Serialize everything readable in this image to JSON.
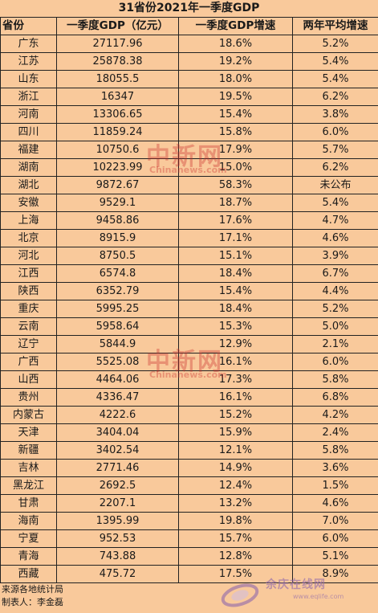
{
  "title": "31省份2021年一季度GDP",
  "headers": {
    "province": "省份",
    "gdp": "一季度GDP（亿元）",
    "growth": "一季度GDP增速",
    "avg": "两年平均增速"
  },
  "rows": [
    {
      "province": "广东",
      "gdp": "27117.96",
      "growth": "18.6%",
      "avg": "5.2%"
    },
    {
      "province": "江苏",
      "gdp": "25878.38",
      "growth": "19.2%",
      "avg": "5.4%"
    },
    {
      "province": "山东",
      "gdp": "18055.5",
      "growth": "18.0%",
      "avg": "5.4%"
    },
    {
      "province": "浙江",
      "gdp": "16347",
      "growth": "19.5%",
      "avg": "6.2%"
    },
    {
      "province": "河南",
      "gdp": "13306.65",
      "growth": "15.4%",
      "avg": "3.8%"
    },
    {
      "province": "四川",
      "gdp": "11859.24",
      "growth": "15.8%",
      "avg": "6.0%"
    },
    {
      "province": "福建",
      "gdp": "10750.6",
      "growth": "17.9%",
      "avg": "5.7%"
    },
    {
      "province": "湖南",
      "gdp": "10223.99",
      "growth": "15.0%",
      "avg": "6.2%"
    },
    {
      "province": "湖北",
      "gdp": "9872.67",
      "growth": "58.3%",
      "avg": "未公布"
    },
    {
      "province": "安徽",
      "gdp": "9529.1",
      "growth": "18.7%",
      "avg": "5.4%"
    },
    {
      "province": "上海",
      "gdp": "9458.86",
      "growth": "17.6%",
      "avg": "4.7%"
    },
    {
      "province": "北京",
      "gdp": "8915.9",
      "growth": "17.1%",
      "avg": "4.6%"
    },
    {
      "province": "河北",
      "gdp": "8750.5",
      "growth": "15.1%",
      "avg": "3.9%"
    },
    {
      "province": "江西",
      "gdp": "6574.8",
      "growth": "18.4%",
      "avg": "6.7%"
    },
    {
      "province": "陕西",
      "gdp": "6352.79",
      "growth": "15.4%",
      "avg": "4.4%"
    },
    {
      "province": "重庆",
      "gdp": "5995.25",
      "growth": "18.4%",
      "avg": "5.2%"
    },
    {
      "province": "云南",
      "gdp": "5958.64",
      "growth": "15.3%",
      "avg": "5.0%"
    },
    {
      "province": "辽宁",
      "gdp": "5844.9",
      "growth": "12.9%",
      "avg": "2.1%"
    },
    {
      "province": "广西",
      "gdp": "5525.08",
      "growth": "16.1%",
      "avg": "6.0%"
    },
    {
      "province": "山西",
      "gdp": "4464.06",
      "growth": "17.3%",
      "avg": "5.8%"
    },
    {
      "province": "贵州",
      "gdp": "4336.47",
      "growth": "16.1%",
      "avg": "6.8%"
    },
    {
      "province": "内蒙古",
      "gdp": "4222.6",
      "growth": "15.2%",
      "avg": "4.2%"
    },
    {
      "province": "天津",
      "gdp": "3404.04",
      "growth": "15.9%",
      "avg": "2.4%"
    },
    {
      "province": "新疆",
      "gdp": "3402.54",
      "growth": "12.1%",
      "avg": "5.8%"
    },
    {
      "province": "吉林",
      "gdp": "2771.46",
      "growth": "14.9%",
      "avg": "3.6%"
    },
    {
      "province": "黑龙江",
      "gdp": "2692.5",
      "growth": "12.4%",
      "avg": "1.5%"
    },
    {
      "province": "甘肃",
      "gdp": "2207.1",
      "growth": "13.2%",
      "avg": "4.6%"
    },
    {
      "province": "海南",
      "gdp": "1395.99",
      "growth": "19.8%",
      "avg": "7.0%"
    },
    {
      "province": "宁夏",
      "gdp": "952.53",
      "growth": "15.7%",
      "avg": "6.0%"
    },
    {
      "province": "青海",
      "gdp": "743.88",
      "growth": "12.8%",
      "avg": "5.1%"
    },
    {
      "province": "西藏",
      "gdp": "475.72",
      "growth": "17.5%",
      "avg": "8.9%"
    }
  ],
  "footer": {
    "source": "来源各地统计局",
    "author": "制表人：李金磊"
  },
  "watermarks": {
    "primary": "中新网",
    "secondary": "Chinanews.com"
  },
  "logo": {
    "name": "余庆在线网",
    "url": "www.eqlife.com"
  },
  "colors": {
    "background": "#f9c99b",
    "border": "#222222",
    "watermark": "#c82828"
  }
}
